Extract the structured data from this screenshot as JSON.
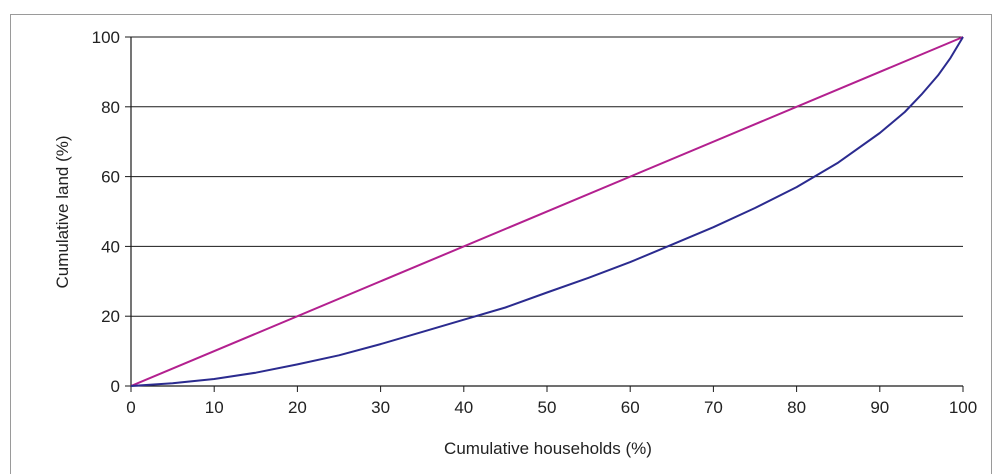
{
  "chart_data": {
    "type": "line",
    "title": "",
    "xlabel": "Cumulative households (%)",
    "ylabel": "Cumulative land (%)",
    "xlim": [
      0,
      100
    ],
    "ylim": [
      0,
      100
    ],
    "x_ticks": [
      0,
      10,
      20,
      30,
      40,
      50,
      60,
      70,
      80,
      90,
      100
    ],
    "y_ticks": [
      0,
      20,
      40,
      60,
      80,
      100
    ],
    "grid": "horizontal",
    "legend": "none",
    "series": [
      {
        "color": "#b3208f",
        "points": [
          [
            0,
            0
          ],
          [
            100,
            100
          ]
        ]
      },
      {
        "color": "#2b2b8f",
        "points": [
          [
            0,
            0
          ],
          [
            5,
            0.8
          ],
          [
            10,
            2
          ],
          [
            15,
            3.8
          ],
          [
            20,
            6.2
          ],
          [
            25,
            8.8
          ],
          [
            30,
            12
          ],
          [
            35,
            15.5
          ],
          [
            40,
            19
          ],
          [
            45,
            22.5
          ],
          [
            50,
            26.8
          ],
          [
            55,
            31
          ],
          [
            60,
            35.5
          ],
          [
            65,
            40.5
          ],
          [
            70,
            45.5
          ],
          [
            75,
            51
          ],
          [
            80,
            57
          ],
          [
            85,
            64
          ],
          [
            90,
            72.5
          ],
          [
            93,
            78.5
          ],
          [
            95,
            83.5
          ],
          [
            97,
            89
          ],
          [
            98.5,
            94
          ],
          [
            100,
            100
          ]
        ]
      }
    ]
  }
}
